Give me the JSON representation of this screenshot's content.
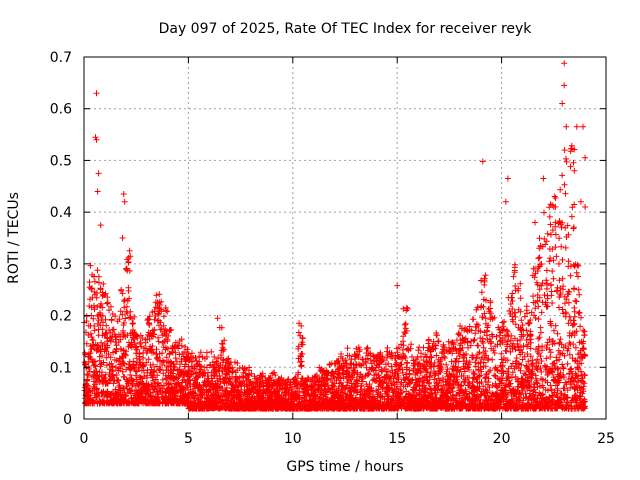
{
  "chart_data": {
    "type": "scatter",
    "title": "Day 097 of 2025, Rate Of TEC Index for receiver reyk",
    "xlabel": "GPS time / hours",
    "ylabel": "ROTI / TECUs",
    "xlim": [
      0,
      25
    ],
    "ylim": [
      0,
      0.7
    ],
    "xticks": [
      "0",
      "5",
      "10",
      "15",
      "20",
      "25"
    ],
    "yticks": [
      "0",
      "0.1",
      "0.2",
      "0.3",
      "0.4",
      "0.5",
      "0.6",
      "0.7"
    ],
    "grid": true,
    "marker": "plus",
    "color": "#ff0000",
    "series": [
      {
        "values_profile": {
          "x_step_hours": 0.25,
          "typical_min": [
            0.03,
            0.03,
            0.03,
            0.03,
            0.03,
            0.03,
            0.03,
            0.03,
            0.03,
            0.03,
            0.03,
            0.03,
            0.03,
            0.03,
            0.03,
            0.03,
            0.03,
            0.03,
            0.03,
            0.03,
            0.02,
            0.02,
            0.02,
            0.02,
            0.02,
            0.02,
            0.02,
            0.02,
            0.02,
            0.02,
            0.02,
            0.02,
            0.02,
            0.02,
            0.02,
            0.02,
            0.02,
            0.02,
            0.02,
            0.02,
            0.02,
            0.02,
            0.02,
            0.02,
            0.02,
            0.02,
            0.02,
            0.02,
            0.02,
            0.02,
            0.02,
            0.02,
            0.02,
            0.02,
            0.02,
            0.02,
            0.02,
            0.02,
            0.02,
            0.02,
            0.02,
            0.02,
            0.02,
            0.02,
            0.02,
            0.02,
            0.02,
            0.02,
            0.02,
            0.02,
            0.02,
            0.02,
            0.02,
            0.02,
            0.02,
            0.02,
            0.02,
            0.02,
            0.02,
            0.02,
            0.02,
            0.02,
            0.02,
            0.02,
            0.02,
            0.02,
            0.02,
            0.02,
            0.02,
            0.02,
            0.02,
            0.02,
            0.02,
            0.02,
            0.02,
            0.02
          ],
          "typical_max": [
            0.2,
            0.3,
            0.33,
            0.28,
            0.25,
            0.22,
            0.2,
            0.25,
            0.33,
            0.2,
            0.17,
            0.16,
            0.2,
            0.24,
            0.25,
            0.22,
            0.18,
            0.15,
            0.16,
            0.14,
            0.13,
            0.12,
            0.13,
            0.14,
            0.13,
            0.12,
            0.18,
            0.12,
            0.11,
            0.11,
            0.1,
            0.1,
            0.09,
            0.09,
            0.09,
            0.08,
            0.09,
            0.08,
            0.08,
            0.08,
            0.08,
            0.17,
            0.08,
            0.08,
            0.09,
            0.1,
            0.1,
            0.11,
            0.12,
            0.13,
            0.14,
            0.13,
            0.14,
            0.12,
            0.14,
            0.14,
            0.13,
            0.13,
            0.14,
            0.14,
            0.15,
            0.22,
            0.16,
            0.13,
            0.14,
            0.15,
            0.16,
            0.17,
            0.15,
            0.15,
            0.15,
            0.17,
            0.18,
            0.18,
            0.2,
            0.22,
            0.28,
            0.24,
            0.2,
            0.18,
            0.2,
            0.25,
            0.3,
            0.28,
            0.22,
            0.22,
            0.3,
            0.35,
            0.4,
            0.42,
            0.45,
            0.48,
            0.55,
            0.56,
            0.3,
            0.2
          ]
        }
      }
    ],
    "outliers": [
      {
        "x": 0.6,
        "y": 0.63
      },
      {
        "x": 0.55,
        "y": 0.545
      },
      {
        "x": 0.6,
        "y": 0.54
      },
      {
        "x": 0.7,
        "y": 0.475
      },
      {
        "x": 0.65,
        "y": 0.44
      },
      {
        "x": 0.8,
        "y": 0.375
      },
      {
        "x": 1.9,
        "y": 0.435
      },
      {
        "x": 1.95,
        "y": 0.42
      },
      {
        "x": 1.85,
        "y": 0.35
      },
      {
        "x": 10.3,
        "y": 0.185
      },
      {
        "x": 10.4,
        "y": 0.18
      },
      {
        "x": 6.4,
        "y": 0.195
      },
      {
        "x": 15.0,
        "y": 0.258
      },
      {
        "x": 19.1,
        "y": 0.498
      },
      {
        "x": 20.3,
        "y": 0.465
      },
      {
        "x": 20.2,
        "y": 0.42
      },
      {
        "x": 23.0,
        "y": 0.688
      },
      {
        "x": 23.0,
        "y": 0.645
      },
      {
        "x": 22.9,
        "y": 0.61
      },
      {
        "x": 23.1,
        "y": 0.565
      },
      {
        "x": 23.6,
        "y": 0.565
      },
      {
        "x": 23.9,
        "y": 0.565
      },
      {
        "x": 24.0,
        "y": 0.505
      },
      {
        "x": 23.3,
        "y": 0.488
      },
      {
        "x": 22.0,
        "y": 0.465
      },
      {
        "x": 21.6,
        "y": 0.38
      },
      {
        "x": 23.8,
        "y": 0.42
      },
      {
        "x": 24.0,
        "y": 0.41
      },
      {
        "x": 22.5,
        "y": 0.41
      },
      {
        "x": 21.8,
        "y": 0.33
      }
    ]
  }
}
